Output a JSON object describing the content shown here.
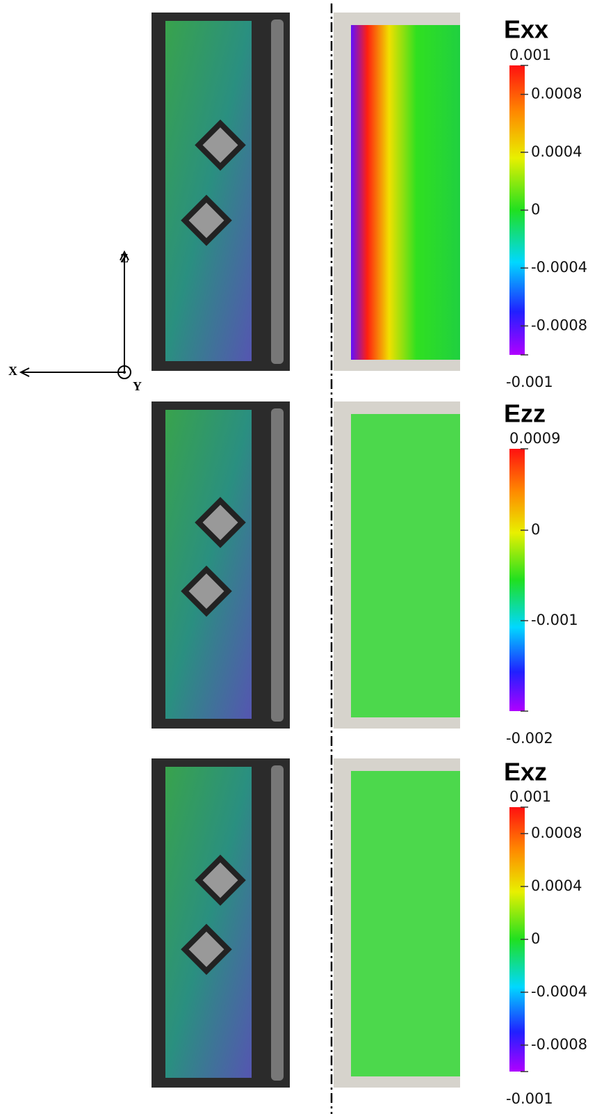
{
  "axes": {
    "x": "X",
    "y": "Y",
    "z": "Z"
  },
  "panels": [
    {
      "title": "Exx",
      "colorbar": {
        "lim": [
          -0.001,
          0.001
        ],
        "ticks": [
          0.001,
          0.0008,
          0.0004,
          0,
          -0.0004,
          -0.0008,
          -0.001
        ]
      }
    },
    {
      "title": "Ezz",
      "colorbar": {
        "lim": [
          -0.002,
          0.0009
        ],
        "ticks": [
          0.0009,
          0,
          -0.001,
          -0.002
        ]
      }
    },
    {
      "title": "Exz",
      "colorbar": {
        "lim": [
          -0.001,
          0.001
        ],
        "ticks": [
          0.001,
          0.0008,
          0.0004,
          0,
          -0.0004,
          -0.0008,
          -0.001
        ]
      }
    }
  ]
}
